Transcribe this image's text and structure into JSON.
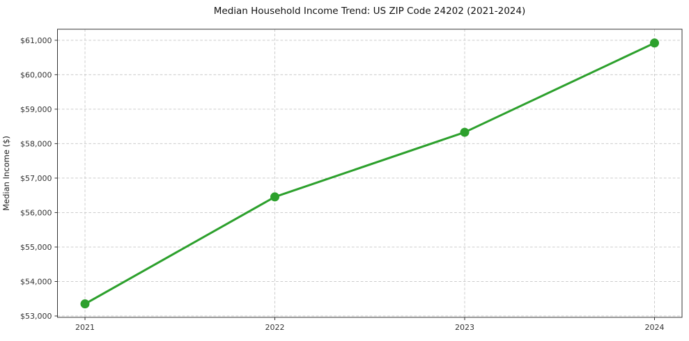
{
  "figure": {
    "background": "#ffffff"
  },
  "chart_data": {
    "type": "line",
    "title": "Median Household Income Trend: US ZIP Code 24202 (2021-2024)",
    "xlabel": "",
    "ylabel": "Median Income ($)",
    "x": [
      "2021",
      "2022",
      "2023",
      "2024"
    ],
    "values": [
      53350,
      56455,
      58330,
      60920
    ],
    "y_ticks": [
      53000,
      54000,
      55000,
      56000,
      57000,
      58000,
      59000,
      60000,
      61000
    ],
    "y_tick_labels": [
      "$53,000",
      "$54,000",
      "$55,000",
      "$56,000",
      "$57,000",
      "$58,000",
      "$59,000",
      "$60,000",
      "$61,000"
    ],
    "ylim": [
      52960,
      61320
    ],
    "grid": true,
    "grid_style": "dashed",
    "grid_color": "#cccccc",
    "legend": "none",
    "line_color": "#2ca02c",
    "marker": "circle",
    "axis_color": "#333333",
    "tick_label_color": "#333333",
    "title_color": "#111111"
  }
}
